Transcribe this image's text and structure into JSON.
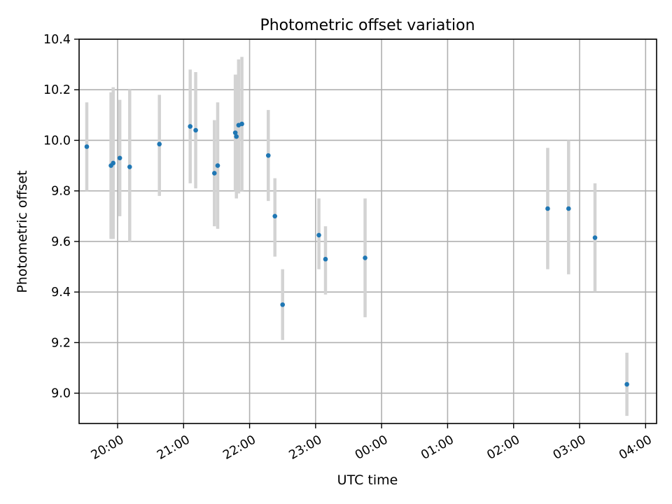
{
  "chart_data": {
    "type": "scatter",
    "title": "Photometric offset variation",
    "xlabel": "UTC time",
    "ylabel": "Photometric offset",
    "x_axis": "time",
    "xlim": [
      "19:25",
      "04:10"
    ],
    "ylim": [
      8.88,
      10.4
    ],
    "x_ticks": [
      "20:00",
      "21:00",
      "22:00",
      "23:00",
      "00:00",
      "01:00",
      "02:00",
      "03:00",
      "04:00"
    ],
    "y_ticks": [
      "9.0",
      "9.2",
      "9.4",
      "9.6",
      "9.8",
      "10.0",
      "10.2",
      "10.4"
    ],
    "y_tick_values": [
      9.0,
      9.2,
      9.4,
      9.6,
      9.8,
      10.0,
      10.2,
      10.4
    ],
    "grid": true,
    "colors": {
      "point": "#1f77b4",
      "errorbar": "#d3d3d3",
      "grid": "#b0b0b0"
    },
    "points": [
      {
        "x": "19:32",
        "y": 9.975,
        "ylow": 9.8,
        "yhigh": 10.15
      },
      {
        "x": "19:54",
        "y": 9.9,
        "ylow": 9.61,
        "yhigh": 10.19
      },
      {
        "x": "19:56",
        "y": 9.91,
        "ylow": 9.61,
        "yhigh": 10.21
      },
      {
        "x": "20:02",
        "y": 9.93,
        "ylow": 9.7,
        "yhigh": 10.16
      },
      {
        "x": "20:11",
        "y": 9.895,
        "ylow": 9.6,
        "yhigh": 10.2
      },
      {
        "x": "20:38",
        "y": 9.985,
        "ylow": 9.78,
        "yhigh": 10.18
      },
      {
        "x": "21:06",
        "y": 10.055,
        "ylow": 9.83,
        "yhigh": 10.28
      },
      {
        "x": "21:11",
        "y": 10.04,
        "ylow": 9.81,
        "yhigh": 10.27
      },
      {
        "x": "21:28",
        "y": 9.87,
        "ylow": 9.66,
        "yhigh": 10.08
      },
      {
        "x": "21:31",
        "y": 9.9,
        "ylow": 9.65,
        "yhigh": 10.15
      },
      {
        "x": "21:47",
        "y": 10.03,
        "ylow": 9.8,
        "yhigh": 10.26
      },
      {
        "x": "21:48",
        "y": 10.015,
        "ylow": 9.77,
        "yhigh": 10.26
      },
      {
        "x": "21:50",
        "y": 10.06,
        "ylow": 9.79,
        "yhigh": 10.32
      },
      {
        "x": "21:53",
        "y": 10.065,
        "ylow": 9.8,
        "yhigh": 10.33
      },
      {
        "x": "22:17",
        "y": 9.94,
        "ylow": 9.76,
        "yhigh": 10.12
      },
      {
        "x": "22:23",
        "y": 9.7,
        "ylow": 9.54,
        "yhigh": 9.85
      },
      {
        "x": "22:30",
        "y": 9.35,
        "ylow": 9.21,
        "yhigh": 9.49
      },
      {
        "x": "23:03",
        "y": 9.625,
        "ylow": 9.49,
        "yhigh": 9.77
      },
      {
        "x": "23:09",
        "y": 9.53,
        "ylow": 9.39,
        "yhigh": 9.66
      },
      {
        "x": "23:45",
        "y": 9.535,
        "ylow": 9.3,
        "yhigh": 9.77
      },
      {
        "x": "02:31",
        "y": 9.73,
        "ylow": 9.49,
        "yhigh": 9.97
      },
      {
        "x": "02:50",
        "y": 9.73,
        "ylow": 9.47,
        "yhigh": 10.0
      },
      {
        "x": "03:14",
        "y": 9.615,
        "ylow": 9.4,
        "yhigh": 9.83
      },
      {
        "x": "03:43",
        "y": 9.035,
        "ylow": 8.91,
        "yhigh": 9.16
      }
    ]
  }
}
